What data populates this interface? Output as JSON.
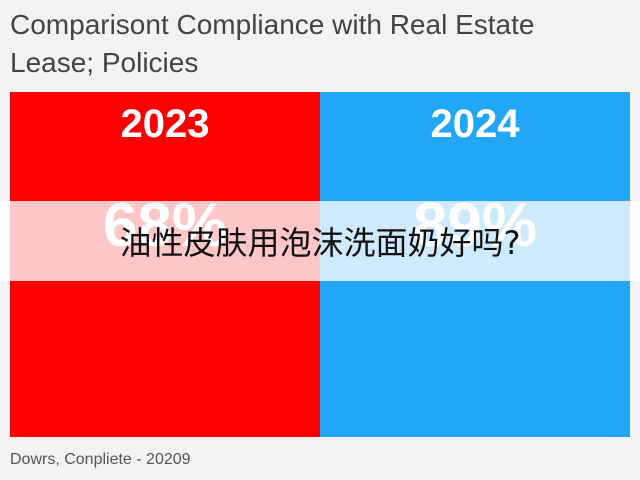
{
  "title": "Comparisont Compliance with Real Estate Lease; Policies",
  "panels": [
    {
      "label": "2023",
      "value": "68%",
      "color": "#fb0000"
    },
    {
      "label": "2024",
      "value": "89%",
      "color": "#22a6f6"
    }
  ],
  "footer": "Dowrs, Conpliete - 20209",
  "overlay": "油性皮肤用泡沫洗面奶好吗?"
}
